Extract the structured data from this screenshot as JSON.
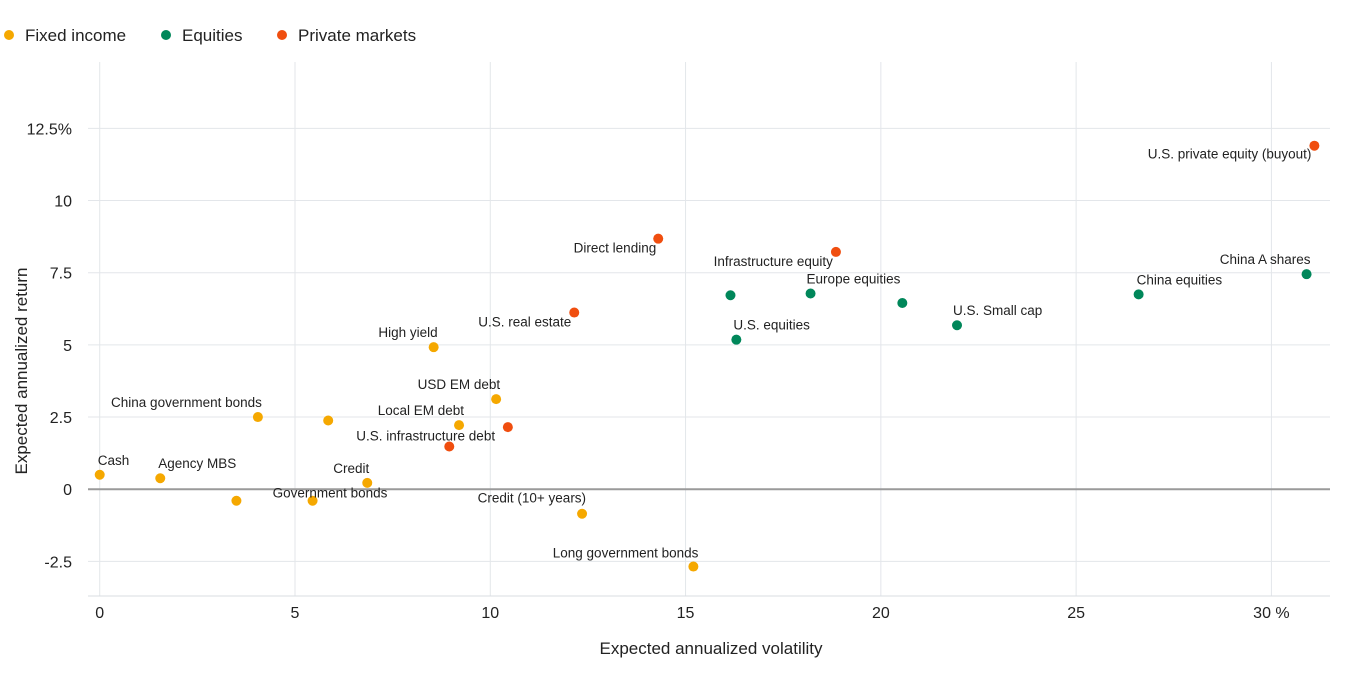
{
  "chart_data": {
    "type": "scatter",
    "xlabel": "Expected annualized volatility",
    "ylabel": "Expected annualized return",
    "xlim": [
      -0.3,
      31.5
    ],
    "ylim": [
      -3.7,
      14.8
    ],
    "x_ticks": [
      0,
      5,
      10,
      15,
      20,
      25,
      30
    ],
    "x_tick_labels": [
      "0",
      "5",
      "10",
      "15",
      "20",
      "25",
      "30 %"
    ],
    "y_ticks": [
      -2.5,
      0,
      2.5,
      5,
      7.5,
      10,
      12.5
    ],
    "y_tick_labels": [
      "-2.5",
      "0",
      "2.5",
      "5",
      "7.5",
      "10",
      "12.5%"
    ],
    "grid": true,
    "legend_position": "top-left",
    "series": [
      {
        "name": "Fixed income",
        "color": "#f5a800",
        "points": [
          {
            "label": "Cash",
            "x": 0,
            "y": 0.5
          },
          {
            "label": "Agency MBS",
            "x": 1.55,
            "y": 0.38
          },
          {
            "label": "",
            "x": 3.5,
            "y": -0.4
          },
          {
            "label": "China government bonds",
            "x": 4.05,
            "y": 2.5
          },
          {
            "label": "Government bonds",
            "x": 5.45,
            "y": -0.4
          },
          {
            "label": "",
            "x": 5.85,
            "y": 2.38
          },
          {
            "label": "Credit",
            "x": 6.85,
            "y": 0.22
          },
          {
            "label": "High yield",
            "x": 8.55,
            "y": 4.92
          },
          {
            "label": "Local EM debt",
            "x": 9.2,
            "y": 2.22
          },
          {
            "label": "USD EM debt",
            "x": 10.15,
            "y": 3.12
          },
          {
            "label": "Credit (10+ years)",
            "x": 12.35,
            "y": -0.85
          },
          {
            "label": "Long government bonds",
            "x": 15.2,
            "y": -2.68
          }
        ]
      },
      {
        "name": "Equities",
        "color": "#00875a",
        "points": [
          {
            "label": "",
            "x": 16.15,
            "y": 6.72
          },
          {
            "label": "U.S. equities",
            "x": 16.3,
            "y": 5.18
          },
          {
            "label": "Europe equities",
            "x": 18.2,
            "y": 6.78
          },
          {
            "label": "",
            "x": 20.55,
            "y": 6.45
          },
          {
            "label": "U.S. Small cap",
            "x": 21.95,
            "y": 5.68
          },
          {
            "label": "China equities",
            "x": 26.6,
            "y": 6.75
          },
          {
            "label": "China A shares",
            "x": 30.9,
            "y": 7.45
          }
        ]
      },
      {
        "name": "Private markets",
        "color": "#f04e0f",
        "points": [
          {
            "label": "U.S. infrastructure debt",
            "x": 8.95,
            "y": 1.48
          },
          {
            "label": "",
            "x": 10.45,
            "y": 2.15
          },
          {
            "label": "U.S. real estate",
            "x": 12.15,
            "y": 6.12
          },
          {
            "label": "Direct lending",
            "x": 14.3,
            "y": 8.68
          },
          {
            "label": "Infrastructure equity",
            "x": 18.85,
            "y": 8.22
          },
          {
            "label": "U.S. private equity (buyout)",
            "x": 31.1,
            "y": 11.9
          }
        ]
      }
    ]
  }
}
